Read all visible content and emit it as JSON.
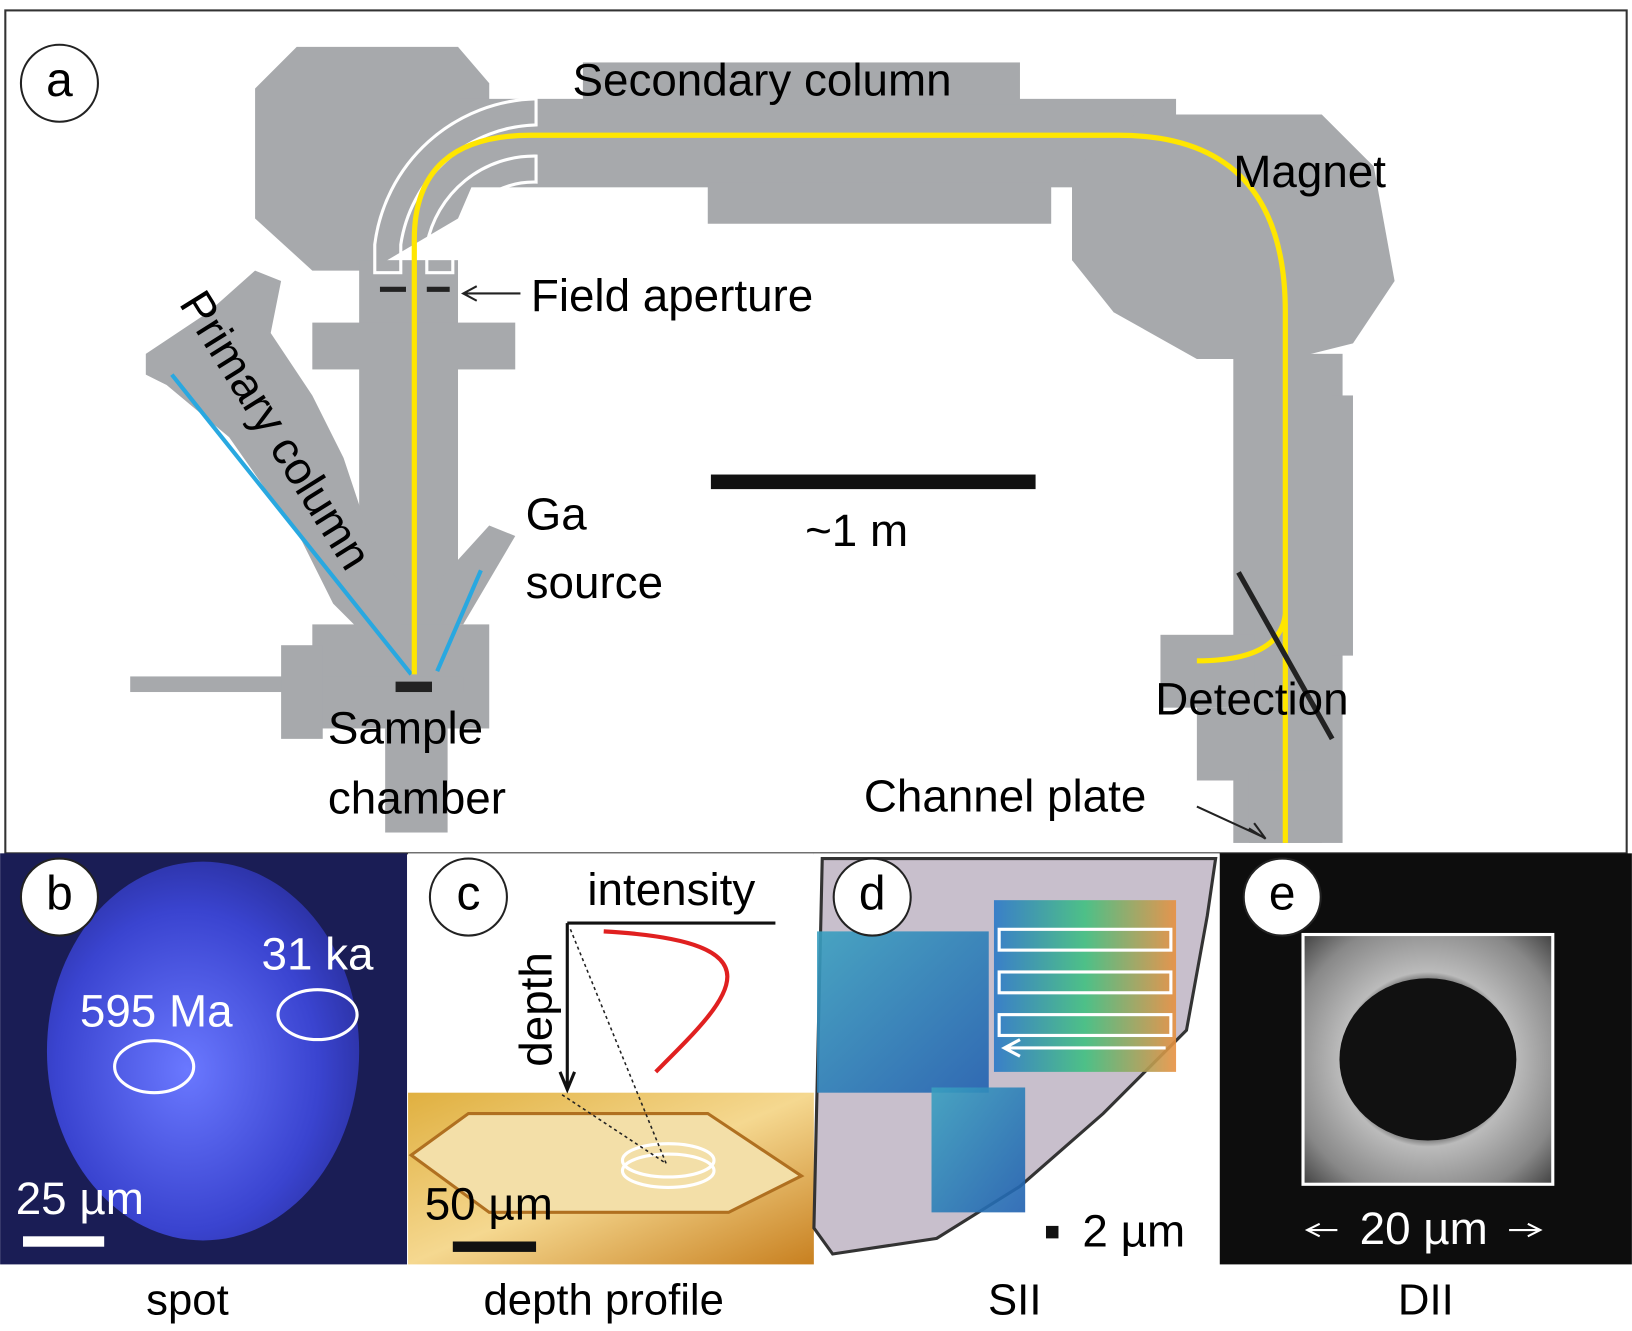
{
  "panel_a": {
    "label": "a",
    "secondary_column": "Secondary column",
    "magnet": "Magnet",
    "field_aperture": "Field aperture",
    "primary_column": "Primary column",
    "ga_source": [
      "Ga",
      "source"
    ],
    "scale_bar": "~1 m",
    "sample_chamber": [
      "Sample",
      "chamber"
    ],
    "detection": "Detection",
    "channel_plate": "Channel plate"
  },
  "panel_b": {
    "label": "b",
    "age_1": "31 ka",
    "age_2": "595 Ma",
    "scale_bar": "25 µm",
    "caption": "spot"
  },
  "panel_c": {
    "label": "c",
    "x_axis": "intensity",
    "y_axis": "depth",
    "scale_bar": "50 µm",
    "caption": "depth profile"
  },
  "panel_d": {
    "label": "d",
    "scale_bar": "2 µm",
    "caption": "SII"
  },
  "panel_e": {
    "label": "e",
    "scale_bar": "20 µm",
    "caption": "DII"
  }
}
